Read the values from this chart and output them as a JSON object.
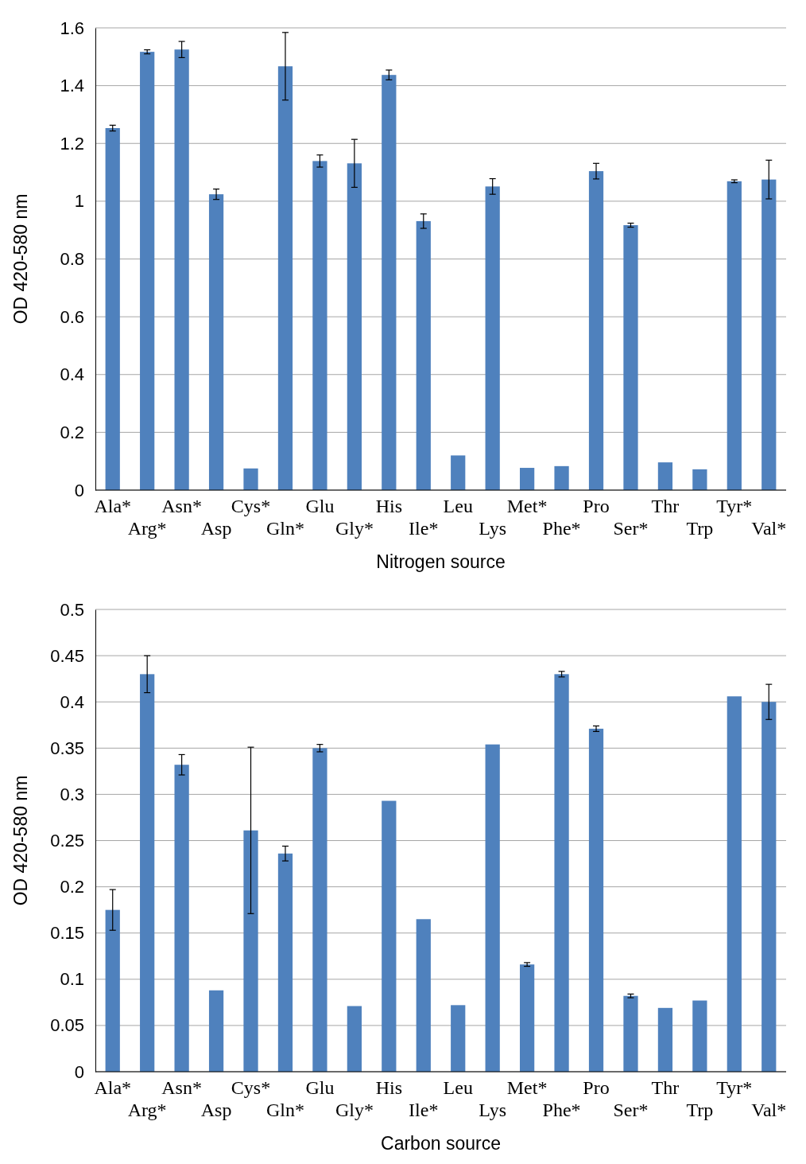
{
  "chart_data": [
    {
      "type": "bar",
      "xlabel": "Nitrogen source",
      "ylabel": "OD 420-580 nm",
      "categories": [
        "Ala*",
        "Arg*",
        "Asn*",
        "Asp",
        "Cys*",
        "Gln*",
        "Glu",
        "Gly*",
        "His",
        "Ile*",
        "Leu",
        "Lys",
        "Met*",
        "Phe*",
        "Pro",
        "Ser*",
        "Thr",
        "Trp",
        "Tyr*",
        "Val*"
      ],
      "values": [
        1.253,
        1.517,
        1.525,
        1.024,
        0.075,
        1.467,
        1.139,
        1.131,
        1.437,
        0.931,
        0.12,
        1.051,
        0.077,
        0.083,
        1.104,
        0.917,
        0.096,
        0.072,
        1.069,
        1.075
      ],
      "errors": [
        0.01,
        0.007,
        0.028,
        0.018,
        null,
        0.117,
        0.021,
        0.083,
        0.017,
        0.025,
        null,
        0.027,
        null,
        null,
        0.027,
        0.007,
        null,
        null,
        0.005,
        0.067
      ],
      "color": "#4f81bd",
      "ylim": [
        0,
        1.6
      ],
      "yticks": [
        0,
        0.2,
        0.4,
        0.6,
        0.8,
        1,
        1.2,
        1.4,
        1.6
      ],
      "grid": "y"
    },
    {
      "type": "bar",
      "xlabel": "Carbon source",
      "ylabel": "OD 420-580 nm",
      "categories": [
        "Ala*",
        "Arg*",
        "Asn*",
        "Asp",
        "Cys*",
        "Gln*",
        "Glu",
        "Gly*",
        "His",
        "Ile*",
        "Leu",
        "Lys",
        "Met*",
        "Phe*",
        "Pro",
        "Ser*",
        "Thr",
        "Trp",
        "Tyr*",
        "Val*"
      ],
      "values": [
        0.175,
        0.43,
        0.332,
        0.088,
        0.261,
        0.236,
        0.35,
        0.071,
        0.293,
        0.165,
        0.072,
        0.354,
        0.116,
        0.43,
        0.371,
        0.082,
        0.069,
        0.077,
        0.406,
        0.4
      ],
      "errors": [
        0.022,
        0.02,
        0.011,
        null,
        0.09,
        0.008,
        0.004,
        null,
        null,
        null,
        null,
        null,
        0.002,
        0.003,
        0.003,
        0.002,
        null,
        null,
        null,
        0.019
      ],
      "color": "#4f81bd",
      "ylim": [
        0,
        0.5
      ],
      "yticks": [
        0,
        0.05,
        0.1,
        0.15,
        0.2,
        0.25,
        0.3,
        0.35,
        0.4,
        0.45,
        0.5
      ],
      "grid": "y"
    }
  ]
}
